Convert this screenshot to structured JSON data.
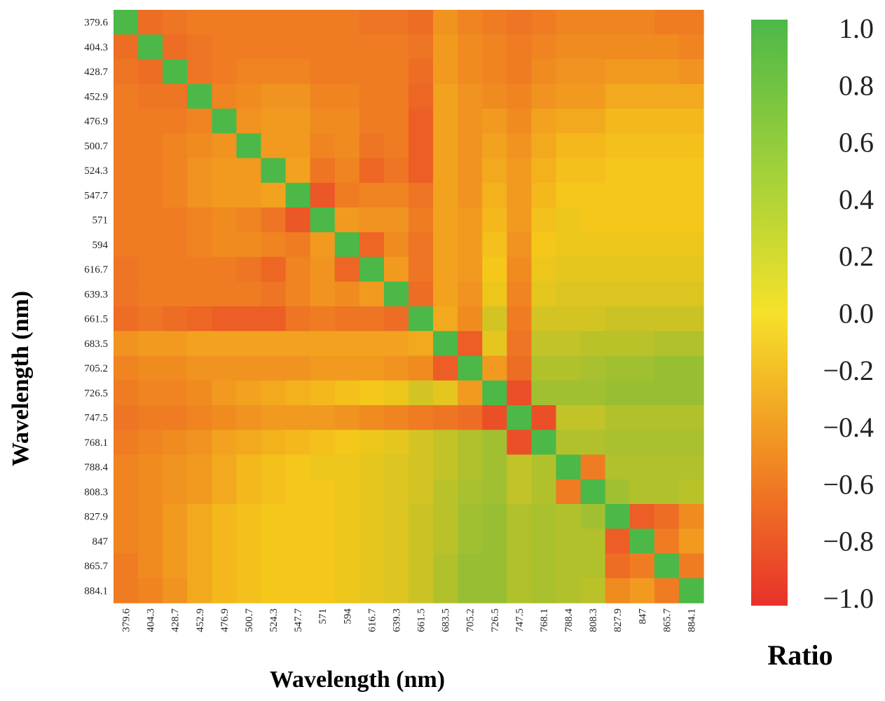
{
  "chart_data": {
    "type": "heatmap",
    "title": "",
    "xlabel": "Wavelength (nm)",
    "ylabel": "Wavelength (nm)",
    "categories": [
      "379.6",
      "404.3",
      "428.7",
      "452.9",
      "476.9",
      "500.7",
      "524.3",
      "547.7",
      "571",
      "594",
      "616.7",
      "639.3",
      "661.5",
      "683.5",
      "705.2",
      "726.5",
      "747.5",
      "768.1",
      "788.4",
      "808.3",
      "827.9",
      "847",
      "865.7",
      "884.1"
    ],
    "symmetric": true,
    "diagonal": 1.0,
    "value_range": [
      -1.0,
      1.0
    ],
    "colorbar": {
      "label": "Ratio",
      "ticks": [
        "1.0",
        "0.8",
        "0.6",
        "0.4",
        "0.2",
        "0.0",
        "−0.2",
        "−0.4",
        "−0.6",
        "−0.8",
        "−1.0"
      ],
      "colors": [
        "#e8312a",
        "#f5c71a",
        "#4cb848"
      ]
    },
    "approx_values_lower_triangle": [
      [
        1.0
      ],
      [
        -0.6,
        1.0
      ],
      [
        -0.55,
        -0.6,
        1.0
      ],
      [
        -0.5,
        -0.55,
        -0.55,
        1.0
      ],
      [
        -0.5,
        -0.5,
        -0.5,
        -0.45,
        1.0
      ],
      [
        -0.5,
        -0.5,
        -0.45,
        -0.4,
        -0.35,
        1.0
      ],
      [
        -0.5,
        -0.5,
        -0.45,
        -0.35,
        -0.3,
        -0.3,
        1.0
      ],
      [
        -0.5,
        -0.5,
        -0.45,
        -0.35,
        -0.3,
        -0.3,
        -0.25,
        1.0
      ],
      [
        -0.5,
        -0.5,
        -0.5,
        -0.45,
        -0.4,
        -0.45,
        -0.55,
        -0.75,
        1.0
      ],
      [
        -0.5,
        -0.5,
        -0.5,
        -0.45,
        -0.4,
        -0.4,
        -0.45,
        -0.5,
        -0.3,
        1.0
      ],
      [
        -0.55,
        -0.5,
        -0.5,
        -0.5,
        -0.5,
        -0.55,
        -0.65,
        -0.45,
        -0.35,
        -0.65,
        1.0
      ],
      [
        -0.55,
        -0.5,
        -0.5,
        -0.5,
        -0.5,
        -0.5,
        -0.55,
        -0.45,
        -0.35,
        -0.4,
        -0.3,
        1.0
      ],
      [
        -0.6,
        -0.55,
        -0.6,
        -0.65,
        -0.7,
        -0.7,
        -0.7,
        -0.55,
        -0.5,
        -0.55,
        -0.55,
        -0.6,
        1.0
      ],
      [
        -0.35,
        -0.3,
        -0.3,
        -0.25,
        -0.25,
        -0.25,
        -0.25,
        -0.25,
        -0.25,
        -0.25,
        -0.25,
        -0.25,
        -0.2,
        1.0
      ],
      [
        -0.45,
        -0.4,
        -0.4,
        -0.35,
        -0.35,
        -0.35,
        -0.35,
        -0.35,
        -0.3,
        -0.3,
        -0.3,
        -0.35,
        -0.4,
        -0.7,
        1.0
      ],
      [
        -0.5,
        -0.45,
        -0.45,
        -0.4,
        -0.3,
        -0.25,
        -0.2,
        -0.15,
        -0.1,
        -0.05,
        0.0,
        0.05,
        0.2,
        0.1,
        -0.3,
        1.0
      ],
      [
        -0.55,
        -0.5,
        -0.5,
        -0.45,
        -0.4,
        -0.35,
        -0.3,
        -0.3,
        -0.3,
        -0.35,
        -0.4,
        -0.45,
        -0.5,
        -0.55,
        -0.6,
        -0.8,
        1.0
      ],
      [
        -0.5,
        -0.45,
        -0.4,
        -0.35,
        -0.25,
        -0.2,
        -0.15,
        -0.1,
        -0.05,
        0.0,
        0.05,
        0.1,
        0.2,
        0.3,
        0.4,
        0.5,
        -0.8,
        1.0
      ],
      [
        -0.45,
        -0.4,
        -0.35,
        -0.3,
        -0.2,
        -0.1,
        -0.05,
        0.0,
        0.05,
        0.05,
        0.1,
        0.15,
        0.2,
        0.3,
        0.4,
        0.5,
        0.3,
        0.4,
        1.0
      ],
      [
        -0.45,
        -0.4,
        -0.35,
        -0.3,
        -0.2,
        -0.1,
        -0.05,
        0.0,
        0.0,
        0.05,
        0.1,
        0.15,
        0.2,
        0.35,
        0.45,
        0.5,
        0.3,
        0.4,
        -0.5,
        1.0
      ],
      [
        -0.45,
        -0.4,
        -0.3,
        -0.2,
        -0.1,
        -0.05,
        0.0,
        0.0,
        0.0,
        0.05,
        0.1,
        0.15,
        0.25,
        0.35,
        0.5,
        0.55,
        0.4,
        0.45,
        0.4,
        0.5,
        1.0
      ],
      [
        -0.45,
        -0.4,
        -0.3,
        -0.2,
        -0.1,
        -0.05,
        0.0,
        0.0,
        0.0,
        0.05,
        0.1,
        0.15,
        0.25,
        0.35,
        0.5,
        0.55,
        0.4,
        0.45,
        0.4,
        0.4,
        -0.7,
        1.0
      ],
      [
        -0.5,
        -0.4,
        -0.3,
        -0.2,
        -0.1,
        -0.05,
        0.0,
        0.0,
        0.0,
        0.05,
        0.1,
        0.15,
        0.25,
        0.4,
        0.55,
        0.55,
        0.4,
        0.45,
        0.4,
        0.4,
        -0.6,
        -0.5,
        1.0
      ],
      [
        -0.5,
        -0.45,
        -0.35,
        -0.2,
        -0.1,
        -0.05,
        0.0,
        0.0,
        0.0,
        0.05,
        0.1,
        0.15,
        0.25,
        0.4,
        0.55,
        0.55,
        0.4,
        0.45,
        0.4,
        0.35,
        -0.4,
        -0.3,
        -0.5,
        1.0
      ]
    ]
  }
}
